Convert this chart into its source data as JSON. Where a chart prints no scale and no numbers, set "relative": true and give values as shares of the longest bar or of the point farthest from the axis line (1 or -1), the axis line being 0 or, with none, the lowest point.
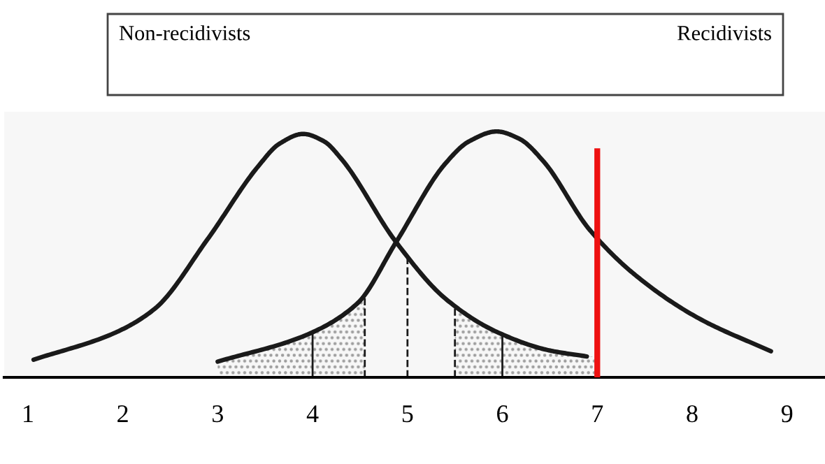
{
  "chart_data": {
    "type": "line",
    "relative": true,
    "tick_labels": "x",
    "grid": false,
    "annotations": [
      "Non-recidivists",
      "Recidivists"
    ],
    "xlim": [
      0.75,
      9.4
    ],
    "xticks": [
      1,
      2,
      3,
      4,
      5,
      6,
      7,
      8,
      9
    ],
    "series": [
      {
        "color": "#1a1a1a",
        "x": [
          1.06,
          1.91,
          2.34,
          2.89,
          3.43,
          3.65,
          3.9,
          4.12,
          4.3,
          4.88,
          5.4,
          5.94,
          6.49,
          6.89
        ],
        "values": [
          0.072,
          0.18,
          0.28,
          0.56,
          0.86,
          0.95,
          0.99,
          0.96,
          0.89,
          0.55,
          0.32,
          0.185,
          0.11,
          0.085
        ]
      },
      {
        "color": "#1a1a1a",
        "x": [
          3.0,
          3.92,
          4.47,
          4.88,
          5.4,
          5.65,
          5.94,
          6.18,
          6.43,
          6.92,
          7.42,
          8.07,
          8.83
        ],
        "values": [
          0.064,
          0.17,
          0.3,
          0.55,
          0.87,
          0.96,
          1.0,
          0.97,
          0.88,
          0.6,
          0.41,
          0.24,
          0.106
        ]
      },
      {
        "type": "area",
        "color": "#9a9a9a",
        "x": [
          3.0,
          3.92,
          4.47,
          4.55
        ],
        "values": [
          0.064,
          0.17,
          0.3,
          0.33
        ]
      },
      {
        "type": "area",
        "color": "#9a9a9a",
        "x": [
          5.5,
          5.94,
          6.49,
          6.89,
          7.0
        ],
        "values": [
          0.29,
          0.185,
          0.11,
          0.085,
          0.085
        ]
      }
    ],
    "ref_lines": [
      {
        "axis": "x",
        "value": 4,
        "color": "#1a1a1a",
        "line_style": "solid"
      },
      {
        "axis": "x",
        "value": 6,
        "color": "#1a1a1a",
        "line_style": "solid"
      },
      {
        "axis": "x",
        "value": 4.55,
        "color": "#1a1a1a",
        "line_style": "dashed"
      },
      {
        "axis": "x",
        "value": 5.0,
        "color": "#1a1a1a",
        "line_style": "dashed"
      },
      {
        "axis": "x",
        "value": 5.5,
        "color": "#1a1a1a",
        "line_style": "dashed"
      },
      {
        "axis": "x",
        "value": 7,
        "color": "#ee1111",
        "line_style": "solid"
      }
    ]
  }
}
